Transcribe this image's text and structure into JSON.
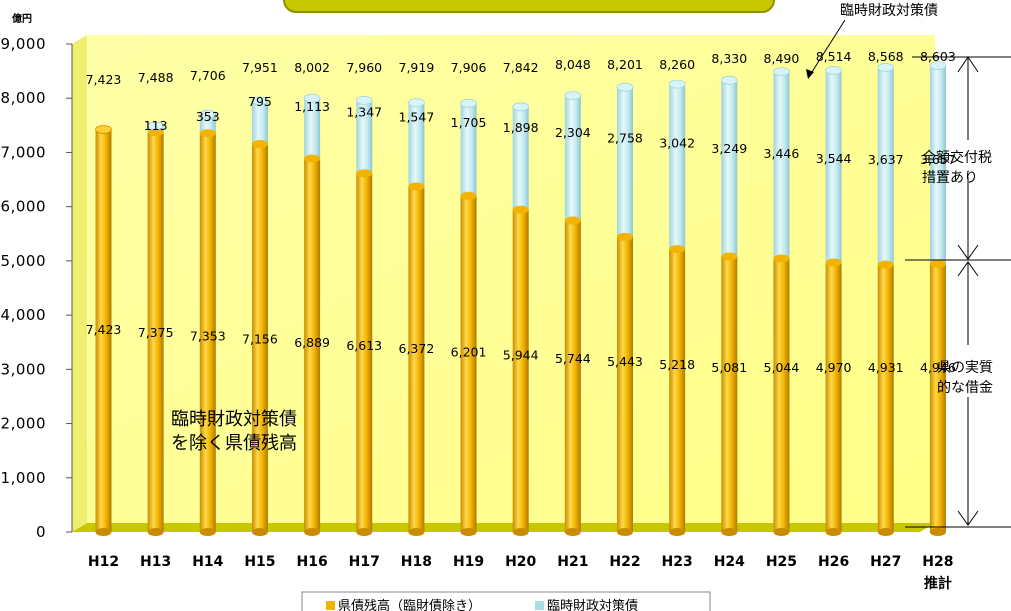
{
  "chart_data": {
    "type": "bar",
    "stacked": true,
    "y_unit": "億円",
    "ylim": [
      0,
      9000
    ],
    "yticks": [
      "0",
      "1,000",
      "2,000",
      "3,000",
      "4,000",
      "5,000",
      "6,000",
      "7,000",
      "8,000",
      "9,000"
    ],
    "categories": [
      "H12",
      "H13",
      "H14",
      "H15",
      "H16",
      "H17",
      "H18",
      "H19",
      "H20",
      "H21",
      "H22",
      "H23",
      "H24",
      "H25",
      "H26",
      "H27",
      "H28"
    ],
    "x_sublabels": {
      "H28": "推計"
    },
    "series": [
      {
        "name": "県債残高（臨財債除き）",
        "color": "#f2b400",
        "values": [
          7423,
          7375,
          7353,
          7156,
          6889,
          6613,
          6372,
          6201,
          5944,
          5744,
          5443,
          5218,
          5081,
          5044,
          4970,
          4931,
          4946
        ],
        "labels": [
          "7,423",
          "7,375",
          "7,353",
          "7,156",
          "6,889",
          "6,613",
          "6,372",
          "6,201",
          "5,944",
          "5,744",
          "5,443",
          "5,218",
          "5,081",
          "5,044",
          "4,970",
          "4,931",
          "4,946"
        ]
      },
      {
        "name": "臨時財政対策債",
        "color": "#b8e8ee",
        "values": [
          0,
          113,
          353,
          795,
          1113,
          1347,
          1547,
          1705,
          1898,
          2304,
          2758,
          3042,
          3249,
          3446,
          3544,
          3637,
          3657
        ],
        "labels": [
          "",
          "113",
          "353",
          "795",
          "1,113",
          "1,347",
          "1,547",
          "1,705",
          "1,898",
          "2,304",
          "2,758",
          "3,042",
          "3,249",
          "3,446",
          "3,544",
          "3,637",
          "3,657"
        ]
      }
    ],
    "totals": [
      "7,423",
      "7,488",
      "7,706",
      "7,951",
      "8,002",
      "7,960",
      "7,919",
      "7,906",
      "7,842",
      "8,048",
      "8,201",
      "8,260",
      "8,330",
      "8,490",
      "8,514",
      "8,568",
      "8,603"
    ],
    "annotations": {
      "inner_label_line1": "臨時財政対策債",
      "inner_label_line2": "を除く県債残高",
      "callout_top": "臨時財政対策債",
      "right_upper_line1": "全額交付税",
      "right_upper_line2": "措置あり",
      "right_lower_line1": "県の実質",
      "right_lower_line2": "的な借金"
    },
    "legend": {
      "position": "bottom-center"
    },
    "colors": {
      "plot_background": "#ffff99",
      "floor": "#c8c800",
      "banner": "#cccc00",
      "banner_border": "#999900"
    },
    "grid": false
  }
}
